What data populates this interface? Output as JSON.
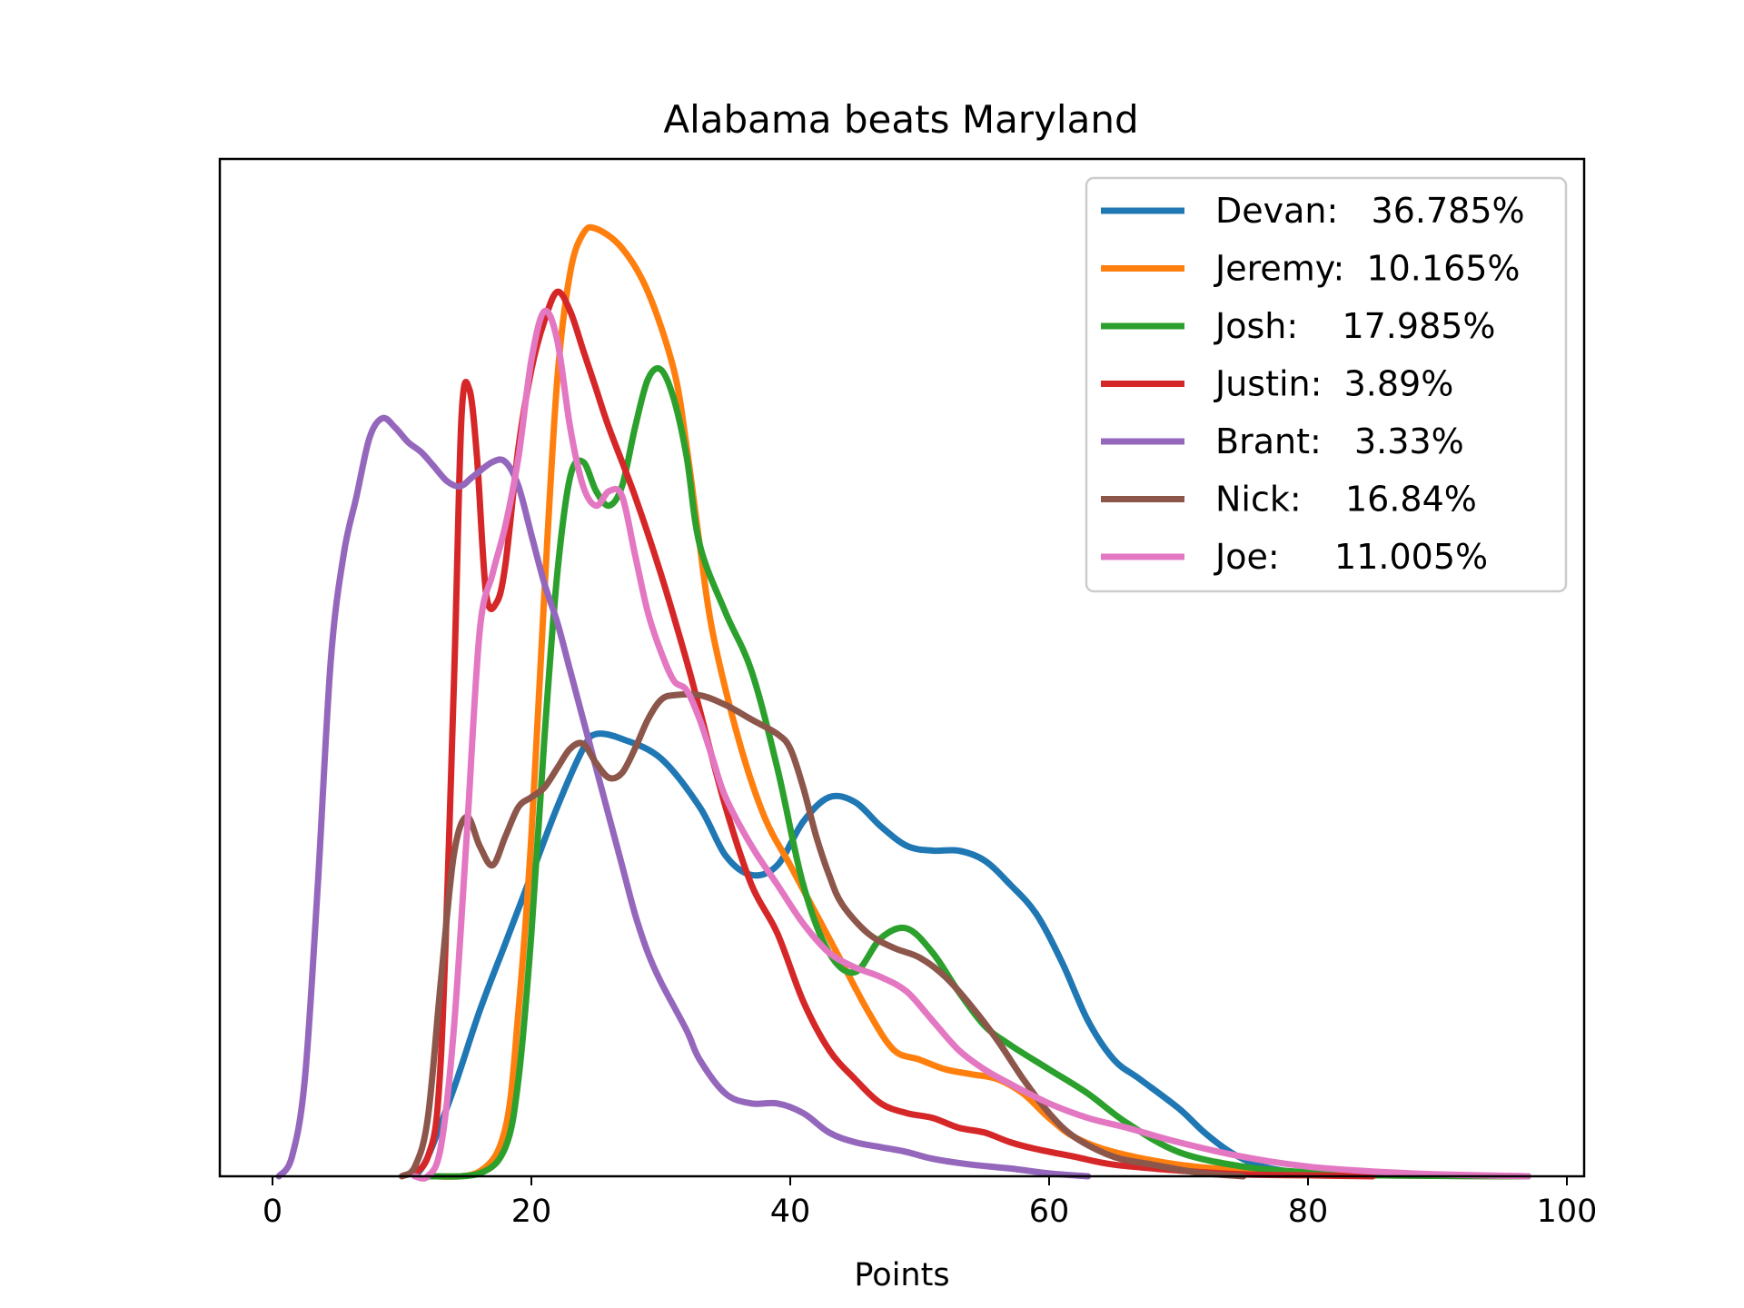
{
  "chart_data": {
    "type": "line",
    "title": "Alabama beats Maryland",
    "xlabel": "Points",
    "ylabel": "",
    "xlim": [
      -4,
      101
    ],
    "ylim": [
      0,
      1.0
    ],
    "x_ticks": [
      0,
      20,
      40,
      60,
      80,
      100
    ],
    "y_ticks_shown": false,
    "grid": false,
    "legend_position": "top-right",
    "series": [
      {
        "name": "Devan",
        "legend_label": "Devan:   36.785%",
        "color": "#1f77b4",
        "points": [
          [
            11,
            0.0
          ],
          [
            12,
            0.02
          ],
          [
            14,
            0.09
          ],
          [
            16,
            0.17
          ],
          [
            18,
            0.24
          ],
          [
            20,
            0.31
          ],
          [
            22,
            0.38
          ],
          [
            24,
            0.44
          ],
          [
            25,
            0.455
          ],
          [
            27,
            0.45
          ],
          [
            30,
            0.43
          ],
          [
            33,
            0.38
          ],
          [
            35,
            0.33
          ],
          [
            37,
            0.31
          ],
          [
            39,
            0.32
          ],
          [
            41,
            0.365
          ],
          [
            43,
            0.39
          ],
          [
            45,
            0.385
          ],
          [
            47,
            0.36
          ],
          [
            49,
            0.34
          ],
          [
            51,
            0.335
          ],
          [
            53,
            0.335
          ],
          [
            55,
            0.325
          ],
          [
            57,
            0.3
          ],
          [
            59,
            0.27
          ],
          [
            61,
            0.22
          ],
          [
            63,
            0.16
          ],
          [
            65,
            0.12
          ],
          [
            67,
            0.1
          ],
          [
            70,
            0.07
          ],
          [
            72,
            0.045
          ],
          [
            74,
            0.025
          ],
          [
            76,
            0.012
          ],
          [
            78,
            0.006
          ],
          [
            80,
            0.003
          ],
          [
            85,
            0.001
          ],
          [
            97,
            0.0
          ]
        ]
      },
      {
        "name": "Jeremy",
        "legend_label": "Jeremy:  10.165%",
        "color": "#ff7f0e",
        "points": [
          [
            12,
            0.0
          ],
          [
            16,
            0.005
          ],
          [
            18,
            0.05
          ],
          [
            19,
            0.17
          ],
          [
            20,
            0.35
          ],
          [
            21,
            0.6
          ],
          [
            22,
            0.82
          ],
          [
            23,
            0.93
          ],
          [
            24,
            0.97
          ],
          [
            25,
            0.975
          ],
          [
            27,
            0.955
          ],
          [
            29,
            0.91
          ],
          [
            31,
            0.83
          ],
          [
            32,
            0.75
          ],
          [
            33,
            0.65
          ],
          [
            34,
            0.56
          ],
          [
            36,
            0.45
          ],
          [
            38,
            0.37
          ],
          [
            40,
            0.32
          ],
          [
            42,
            0.27
          ],
          [
            44,
            0.22
          ],
          [
            46,
            0.17
          ],
          [
            48,
            0.13
          ],
          [
            50,
            0.12
          ],
          [
            52,
            0.11
          ],
          [
            54,
            0.105
          ],
          [
            56,
            0.1
          ],
          [
            58,
            0.085
          ],
          [
            60,
            0.06
          ],
          [
            62,
            0.04
          ],
          [
            65,
            0.025
          ],
          [
            70,
            0.012
          ],
          [
            75,
            0.006
          ],
          [
            80,
            0.003
          ],
          [
            85,
            0.001
          ],
          [
            97,
            0.0
          ]
        ]
      },
      {
        "name": "Josh",
        "legend_label": "Josh:    17.985%",
        "color": "#2ca02c",
        "points": [
          [
            12,
            0.0
          ],
          [
            16,
            0.003
          ],
          [
            18,
            0.03
          ],
          [
            19,
            0.1
          ],
          [
            20,
            0.25
          ],
          [
            21,
            0.45
          ],
          [
            22,
            0.62
          ],
          [
            23,
            0.72
          ],
          [
            24,
            0.735
          ],
          [
            25,
            0.705
          ],
          [
            26,
            0.69
          ],
          [
            27,
            0.71
          ],
          [
            28,
            0.77
          ],
          [
            29,
            0.82
          ],
          [
            30,
            0.83
          ],
          [
            31,
            0.8
          ],
          [
            32,
            0.74
          ],
          [
            33,
            0.65
          ],
          [
            35,
            0.58
          ],
          [
            37,
            0.52
          ],
          [
            39,
            0.42
          ],
          [
            41,
            0.3
          ],
          [
            43,
            0.23
          ],
          [
            45,
            0.21
          ],
          [
            47,
            0.245
          ],
          [
            49,
            0.255
          ],
          [
            51,
            0.23
          ],
          [
            53,
            0.19
          ],
          [
            55,
            0.155
          ],
          [
            57,
            0.135
          ],
          [
            60,
            0.11
          ],
          [
            63,
            0.085
          ],
          [
            66,
            0.055
          ],
          [
            70,
            0.025
          ],
          [
            75,
            0.01
          ],
          [
            80,
            0.004
          ],
          [
            85,
            0.001
          ],
          [
            97,
            0.0
          ]
        ]
      },
      {
        "name": "Justin",
        "legend_label": "Justin:  3.89%",
        "color": "#d62728",
        "points": [
          [
            10,
            0.0
          ],
          [
            12,
            0.02
          ],
          [
            13,
            0.12
          ],
          [
            14,
            0.5
          ],
          [
            14.6,
            0.78
          ],
          [
            15.2,
            0.81
          ],
          [
            15.8,
            0.74
          ],
          [
            16.5,
            0.6
          ],
          [
            17.3,
            0.59
          ],
          [
            18,
            0.63
          ],
          [
            19,
            0.75
          ],
          [
            20,
            0.83
          ],
          [
            21,
            0.88
          ],
          [
            22,
            0.91
          ],
          [
            23,
            0.89
          ],
          [
            24,
            0.85
          ],
          [
            25,
            0.81
          ],
          [
            26,
            0.77
          ],
          [
            28,
            0.7
          ],
          [
            30,
            0.62
          ],
          [
            32,
            0.53
          ],
          [
            33,
            0.48
          ],
          [
            35,
            0.38
          ],
          [
            37,
            0.3
          ],
          [
            39,
            0.25
          ],
          [
            41,
            0.18
          ],
          [
            43,
            0.13
          ],
          [
            45,
            0.1
          ],
          [
            47,
            0.075
          ],
          [
            49,
            0.065
          ],
          [
            51,
            0.06
          ],
          [
            53,
            0.05
          ],
          [
            55,
            0.045
          ],
          [
            57,
            0.035
          ],
          [
            59,
            0.028
          ],
          [
            62,
            0.02
          ],
          [
            65,
            0.012
          ],
          [
            70,
            0.006
          ],
          [
            75,
            0.002
          ],
          [
            80,
            0.001
          ],
          [
            85,
            0.0
          ]
        ]
      },
      {
        "name": "Brant",
        "legend_label": "Brant:   3.33%",
        "color": "#9467bd",
        "points": [
          [
            0.5,
            0.0
          ],
          [
            1.5,
            0.02
          ],
          [
            2.5,
            0.1
          ],
          [
            3.5,
            0.3
          ],
          [
            4.5,
            0.53
          ],
          [
            5.5,
            0.64
          ],
          [
            6.5,
            0.7
          ],
          [
            7.5,
            0.76
          ],
          [
            8.5,
            0.78
          ],
          [
            9.5,
            0.77
          ],
          [
            10.5,
            0.755
          ],
          [
            11.5,
            0.745
          ],
          [
            12.5,
            0.73
          ],
          [
            13.5,
            0.715
          ],
          [
            14.5,
            0.71
          ],
          [
            15.5,
            0.72
          ],
          [
            17,
            0.735
          ],
          [
            18,
            0.735
          ],
          [
            19,
            0.71
          ],
          [
            20,
            0.66
          ],
          [
            21,
            0.61
          ],
          [
            22,
            0.57
          ],
          [
            23,
            0.52
          ],
          [
            24,
            0.47
          ],
          [
            25,
            0.42
          ],
          [
            26,
            0.37
          ],
          [
            27,
            0.32
          ],
          [
            28,
            0.27
          ],
          [
            29,
            0.23
          ],
          [
            30,
            0.2
          ],
          [
            32,
            0.15
          ],
          [
            33,
            0.12
          ],
          [
            35,
            0.085
          ],
          [
            37,
            0.075
          ],
          [
            39,
            0.075
          ],
          [
            41,
            0.065
          ],
          [
            43,
            0.045
          ],
          [
            45,
            0.035
          ],
          [
            47,
            0.03
          ],
          [
            49,
            0.025
          ],
          [
            51,
            0.018
          ],
          [
            54,
            0.012
          ],
          [
            57,
            0.008
          ],
          [
            60,
            0.003
          ],
          [
            63,
            0.0
          ]
        ]
      },
      {
        "name": "Nick",
        "legend_label": "Nick:    16.84%",
        "color": "#8c564b",
        "points": [
          [
            10,
            0.0
          ],
          [
            11,
            0.01
          ],
          [
            12,
            0.06
          ],
          [
            13,
            0.2
          ],
          [
            14,
            0.33
          ],
          [
            15,
            0.37
          ],
          [
            16,
            0.34
          ],
          [
            17,
            0.32
          ],
          [
            18,
            0.35
          ],
          [
            19,
            0.38
          ],
          [
            20,
            0.39
          ],
          [
            21,
            0.4
          ],
          [
            22,
            0.42
          ],
          [
            23,
            0.44
          ],
          [
            24,
            0.445
          ],
          [
            25,
            0.425
          ],
          [
            26,
            0.41
          ],
          [
            27,
            0.415
          ],
          [
            28,
            0.44
          ],
          [
            29,
            0.47
          ],
          [
            30,
            0.49
          ],
          [
            31,
            0.495
          ],
          [
            33,
            0.495
          ],
          [
            35,
            0.485
          ],
          [
            37,
            0.47
          ],
          [
            39,
            0.455
          ],
          [
            40,
            0.44
          ],
          [
            41,
            0.4
          ],
          [
            42,
            0.35
          ],
          [
            43,
            0.31
          ],
          [
            44,
            0.28
          ],
          [
            46,
            0.25
          ],
          [
            48,
            0.235
          ],
          [
            50,
            0.225
          ],
          [
            52,
            0.205
          ],
          [
            54,
            0.175
          ],
          [
            56,
            0.14
          ],
          [
            58,
            0.1
          ],
          [
            60,
            0.065
          ],
          [
            62,
            0.04
          ],
          [
            65,
            0.02
          ],
          [
            68,
            0.012
          ],
          [
            70,
            0.007
          ],
          [
            72,
            0.003
          ],
          [
            75,
            0.0
          ]
        ]
      },
      {
        "name": "Joe",
        "legend_label": "Joe:     11.005%",
        "color": "#e377c2",
        "points": [
          [
            11,
            0.0
          ],
          [
            12,
            0.0
          ],
          [
            13,
            0.03
          ],
          [
            14,
            0.15
          ],
          [
            15,
            0.35
          ],
          [
            16,
            0.56
          ],
          [
            17,
            0.62
          ],
          [
            18,
            0.67
          ],
          [
            19,
            0.74
          ],
          [
            20,
            0.84
          ],
          [
            21,
            0.89
          ],
          [
            22,
            0.86
          ],
          [
            23,
            0.77
          ],
          [
            24,
            0.71
          ],
          [
            25,
            0.69
          ],
          [
            26,
            0.705
          ],
          [
            27,
            0.7
          ],
          [
            28,
            0.64
          ],
          [
            29,
            0.58
          ],
          [
            30,
            0.54
          ],
          [
            31,
            0.51
          ],
          [
            32,
            0.5
          ],
          [
            33,
            0.47
          ],
          [
            34,
            0.43
          ],
          [
            35,
            0.39
          ],
          [
            37,
            0.34
          ],
          [
            39,
            0.3
          ],
          [
            41,
            0.26
          ],
          [
            43,
            0.23
          ],
          [
            45,
            0.215
          ],
          [
            47,
            0.205
          ],
          [
            49,
            0.19
          ],
          [
            51,
            0.16
          ],
          [
            53,
            0.13
          ],
          [
            55,
            0.11
          ],
          [
            57,
            0.095
          ],
          [
            60,
            0.075
          ],
          [
            63,
            0.06
          ],
          [
            66,
            0.05
          ],
          [
            70,
            0.035
          ],
          [
            75,
            0.02
          ],
          [
            80,
            0.01
          ],
          [
            85,
            0.005
          ],
          [
            90,
            0.002
          ],
          [
            97,
            0.0
          ]
        ]
      }
    ]
  }
}
